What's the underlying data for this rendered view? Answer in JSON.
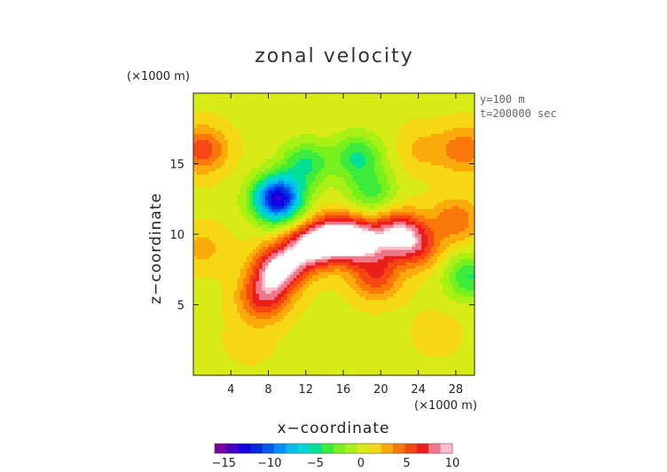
{
  "chart_data": {
    "type": "heatmap",
    "title": "zonal velocity",
    "xlabel": "x−coordinate",
    "ylabel": "z−coordinate",
    "x_unit_label": "(×1000 m)",
    "y_unit_label": "(×1000 m)",
    "x_ticks": [
      "4",
      "8",
      "12",
      "16",
      "20",
      "24",
      "28"
    ],
    "x_tick_values": [
      4,
      8,
      12,
      16,
      20,
      24,
      28
    ],
    "y_ticks": [
      "5",
      "10",
      "15"
    ],
    "y_tick_values": [
      5,
      10,
      15
    ],
    "xlim": [
      0,
      30
    ],
    "ylim": [
      0,
      20
    ],
    "annotations": [
      "y=100 m",
      "t=200000 sec"
    ],
    "colorbar": {
      "ticks": [
        "−15",
        "−10",
        "−5",
        "0",
        "5",
        "10"
      ],
      "tick_values": [
        -15,
        -10,
        -5,
        0,
        5,
        10
      ],
      "range": [
        -16,
        10
      ]
    },
    "field_features": [
      {
        "x": 9,
        "z": 12.5,
        "value": -14
      },
      {
        "x": 12,
        "z": 15,
        "value": -5
      },
      {
        "x": 17.5,
        "z": 15.5,
        "value": -5
      },
      {
        "x": 19,
        "z": 13,
        "value": -4
      },
      {
        "x": 15,
        "z": 9.7,
        "value": 10
      },
      {
        "x": 9,
        "z": 7.5,
        "value": 9
      },
      {
        "x": 12,
        "z": 9,
        "value": 8
      },
      {
        "x": 18,
        "z": 9.5,
        "value": 8
      },
      {
        "x": 22,
        "z": 10,
        "value": 8
      },
      {
        "x": 7.5,
        "z": 5.5,
        "value": 6
      },
      {
        "x": 19.5,
        "z": 7,
        "value": 5
      },
      {
        "x": 24,
        "z": 9,
        "value": 4
      },
      {
        "x": 1,
        "z": 16,
        "value": 5
      },
      {
        "x": 29,
        "z": 16,
        "value": 4
      },
      {
        "x": 1,
        "z": 9,
        "value": 2
      },
      {
        "x": 28,
        "z": 11,
        "value": 4
      },
      {
        "x": 24.5,
        "z": 16,
        "value": 2
      },
      {
        "x": 6,
        "z": 2.5,
        "value": 1
      },
      {
        "x": 15,
        "z": 1.5,
        "value": -1
      },
      {
        "x": 26,
        "z": 3,
        "value": 1
      },
      {
        "x": 29.5,
        "z": 7,
        "value": -5
      }
    ]
  }
}
